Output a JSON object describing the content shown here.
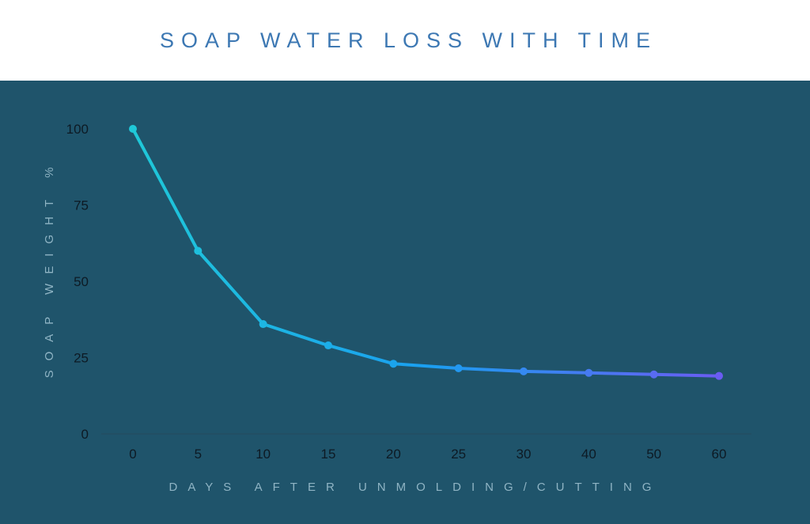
{
  "chart_data": {
    "type": "line",
    "title": "SOAP WATER LOSS WITH TIME",
    "xlabel": "DAYS AFTER UNMOLDING/CUTTING",
    "ylabel": "SOAP WEIGHT %",
    "categories": [
      "0",
      "5",
      "10",
      "15",
      "20",
      "25",
      "30",
      "40",
      "50",
      "60"
    ],
    "series": [
      {
        "values": [
          100,
          60,
          36,
          29,
          23,
          21.5,
          20.5,
          20,
          19.5,
          19
        ]
      }
    ],
    "yticks": [
      0,
      25,
      50,
      75,
      100
    ],
    "ylim": [
      0,
      100
    ],
    "grid": false,
    "colors": {
      "background": "#1f546b",
      "title": "#3d78b3",
      "line_start": "#1fc8d8",
      "line_mid": "#1a9ff0",
      "line_end": "#6a5cf2",
      "axis_title": "#8fb4c4",
      "tick_text": "#0d1a24",
      "baseline": "#254a5c"
    }
  }
}
